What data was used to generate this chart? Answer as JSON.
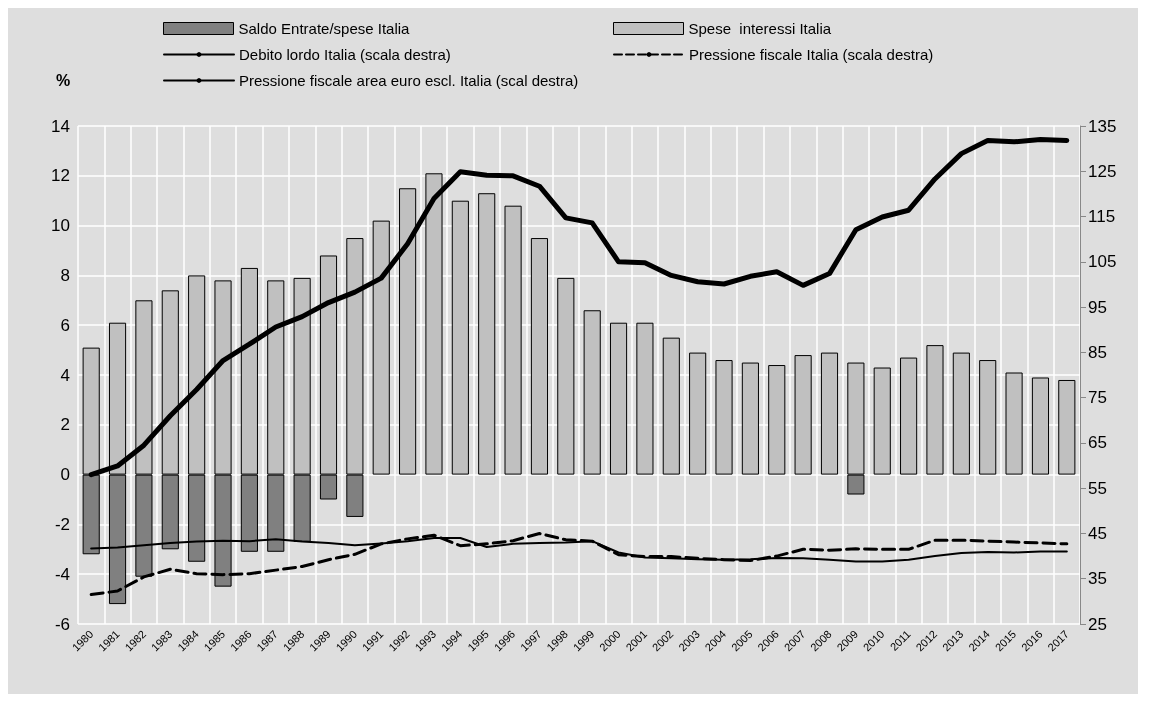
{
  "chart_data": {
    "type": "bar",
    "ylabel": "%",
    "grid": true,
    "legend": "top",
    "categories": [
      "1980",
      "1981",
      "1982",
      "1983",
      "1984",
      "1985",
      "1986",
      "1987",
      "1988",
      "1989",
      "1990",
      "1991",
      "1992",
      "1993",
      "1994",
      "1995",
      "1996",
      "1997",
      "1998",
      "1999",
      "2000",
      "2001",
      "2002",
      "2003",
      "2004",
      "2005",
      "2006",
      "2007",
      "2008",
      "2009",
      "2010",
      "2011",
      "2012",
      "2013",
      "2014",
      "2015",
      "2016",
      "2017"
    ],
    "ylim": [
      -6,
      14
    ],
    "yticks": [
      -6,
      -4,
      -2,
      0,
      2,
      4,
      6,
      8,
      10,
      12,
      14
    ],
    "y2lim": [
      25,
      135
    ],
    "y2ticks": [
      25,
      35,
      45,
      55,
      65,
      75,
      85,
      95,
      105,
      115,
      125,
      135
    ],
    "series": [
      {
        "name": "Saldo Entrate/spese Italia",
        "color": "#808080",
        "values": [
          -3.2,
          -5.2,
          -4.1,
          -3.0,
          -3.5,
          -4.5,
          -3.1,
          -3.1,
          -2.7,
          -1.0,
          -1.7,
          null,
          null,
          null,
          null,
          null,
          null,
          null,
          null,
          null,
          null,
          null,
          null,
          null,
          null,
          null,
          null,
          null,
          null,
          -0.8,
          null,
          null,
          null,
          null,
          null,
          null,
          null,
          null
        ]
      },
      {
        "name": "Spese  interessi Italia",
        "color": "#c0c0c0",
        "values": [
          5.1,
          6.1,
          7.0,
          7.4,
          8.0,
          7.8,
          8.3,
          7.8,
          7.9,
          8.8,
          9.5,
          10.2,
          11.5,
          12.1,
          11.0,
          11.3,
          10.8,
          9.5,
          7.9,
          6.6,
          6.1,
          6.1,
          5.5,
          4.9,
          4.6,
          4.5,
          4.4,
          4.8,
          4.9,
          4.5,
          4.3,
          4.7,
          5.2,
          4.9,
          4.6,
          4.1,
          3.9,
          3.8
        ]
      },
      {
        "name": "Debito lordo Italia (scala destra)",
        "type": "line",
        "axis": "y2",
        "color": "#000000",
        "line_style": "solid",
        "values": [
          58,
          59.9,
          64.5,
          71.0,
          76.8,
          83.2,
          86.8,
          90.6,
          92.9,
          96.0,
          98.3,
          101.4,
          109.0,
          119.0,
          124.9,
          124.1,
          124.0,
          121.7,
          114.7,
          113.6,
          105.0,
          104.8,
          102.0,
          100.6,
          100.1,
          101.8,
          102.8,
          99.8,
          102.4,
          112.1,
          114.9,
          116.4,
          123.3,
          128.9,
          131.8,
          131.5,
          132.0,
          131.8
        ]
      },
      {
        "name": "Pressione fiscale Italia (scala destra)",
        "type": "line",
        "axis": "y2",
        "color": "#000000",
        "line_style": "dashed",
        "values": [
          31.5,
          32.3,
          35.4,
          37.1,
          36.1,
          35.9,
          36.1,
          36.9,
          37.7,
          39.2,
          40.4,
          42.7,
          43.8,
          44.6,
          42.3,
          42.7,
          43.4,
          45.0,
          43.6,
          43.3,
          40.3,
          39.9,
          39.9,
          39.5,
          39.2,
          39.0,
          40.0,
          41.5,
          41.3,
          41.6,
          41.5,
          41.5,
          43.5,
          43.5,
          43.3,
          43.1,
          42.9,
          42.7
        ]
      },
      {
        "name": "Pressione fiscale area euro escl. Italia (scal destra)",
        "type": "line",
        "axis": "y2",
        "color": "#000000",
        "line_style": "solid",
        "values": [
          41.7,
          41.9,
          42.4,
          42.9,
          43.2,
          43.4,
          43.3,
          43.7,
          43.2,
          42.9,
          42.4,
          42.8,
          43.3,
          44.0,
          44.0,
          42.0,
          42.7,
          42.9,
          43.0,
          43.3,
          40.8,
          39.7,
          39.5,
          39.3,
          39.2,
          39.3,
          39.6,
          39.5,
          39.2,
          38.8,
          38.8,
          39.2,
          40.0,
          40.7,
          40.9,
          40.8,
          41.0,
          41.0
        ]
      }
    ]
  }
}
